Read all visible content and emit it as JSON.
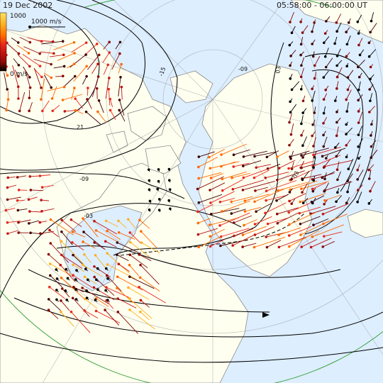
{
  "header": {
    "date": "19 Dec 2002",
    "time_range": "05:58:00 - 06:00:00 UT"
  },
  "colorbar": {
    "max_label": "1000",
    "min_label": "0 m/s",
    "colors": [
      "#ffe066",
      "#ffb020",
      "#ff6a00",
      "#e8281c",
      "#c0140f",
      "#8a0a08",
      "#400000",
      "#000000"
    ]
  },
  "scale_vector": {
    "label": "1000 m/s"
  },
  "contour_labels": [
    {
      "id": "c1",
      "text": "-15"
    },
    {
      "id": "c2",
      "text": "-09"
    },
    {
      "id": "c3",
      "text": "03"
    },
    {
      "id": "c4",
      "text": "21"
    },
    {
      "id": "c5",
      "text": "-09"
    },
    {
      "id": "c6",
      "text": "-03"
    },
    {
      "id": "c7",
      "text": "03"
    }
  ],
  "colors": {
    "ocean": "#ddeeff",
    "land": "#fffff0",
    "coast": "#8a8a8a",
    "grid": "#9a9a9a",
    "contour": "#000000",
    "boundary": "#2a9a2a"
  }
}
